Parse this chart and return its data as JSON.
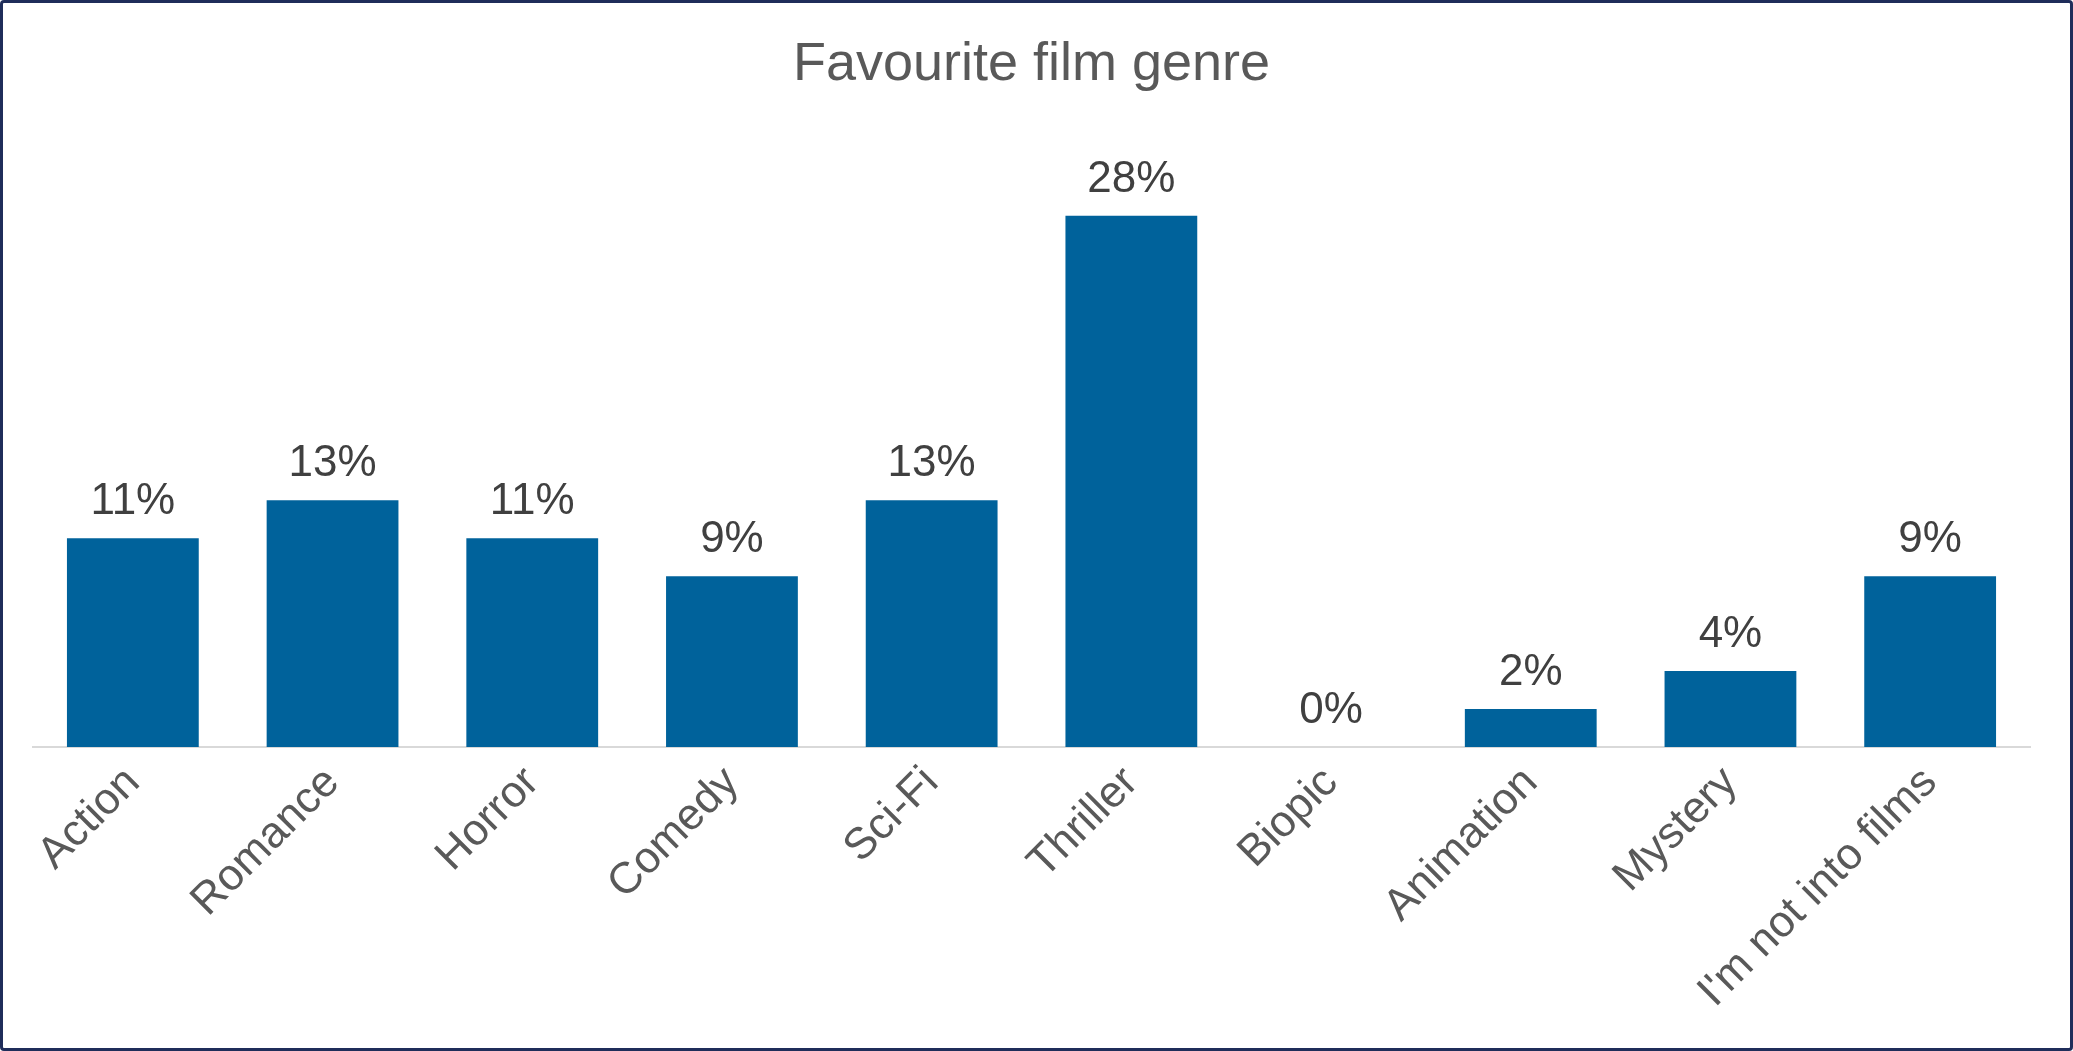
{
  "chart_data": {
    "type": "bar",
    "title": "Favourite film genre",
    "categories": [
      "Action",
      "Romance",
      "Horror",
      "Comedy",
      "Sci-Fi",
      "Thriller",
      "Biopic",
      "Animation",
      "Mystery",
      "I'm not into films"
    ],
    "values": [
      11,
      13,
      11,
      9,
      13,
      28,
      0,
      2,
      4,
      9
    ],
    "value_labels": [
      "11%",
      "13%",
      "11%",
      "9%",
      "13%",
      "28%",
      "0%",
      "2%",
      "4%",
      "9%"
    ],
    "color": "#00629b",
    "grid": false,
    "legend": false
  }
}
